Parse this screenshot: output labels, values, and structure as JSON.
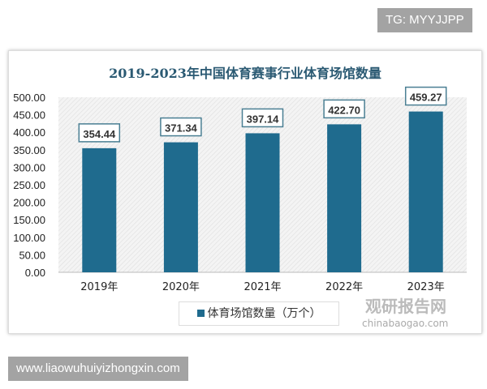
{
  "top_badge": "TG: MYYJJPP",
  "bottom_badge": "www.liaowuhuiyizhongxin.com",
  "watermark": {
    "cn": "观研报告网",
    "en": "chinabaogao.com"
  },
  "chart_data": {
    "type": "bar",
    "title": "2019-2023年中国体育赛事行业体育场馆数量",
    "categories": [
      "2019年",
      "2020年",
      "2021年",
      "2022年",
      "2023年"
    ],
    "series": [
      {
        "name": "体育场馆数量（万个）",
        "values": [
          354.44,
          371.34,
          397.14,
          422.7,
          459.27
        ]
      }
    ],
    "data_labels": [
      "354.44",
      "371.34",
      "397.14",
      "422.70",
      "459.27"
    ],
    "ylim": [
      0,
      500
    ],
    "yticks": [
      "0.00",
      "50.00",
      "100.00",
      "150.00",
      "200.00",
      "250.00",
      "300.00",
      "350.00",
      "400.00",
      "450.00",
      "500.00"
    ],
    "color": "#1f6b8e",
    "legend": "bottom"
  }
}
